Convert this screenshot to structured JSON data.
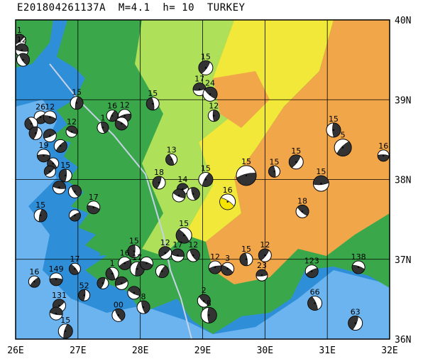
{
  "title": "E201804261137A  M=4.1  h= 10  TURKEY",
  "axes": {
    "x_ticks": [
      "26E",
      "27E",
      "28E",
      "29E",
      "30E",
      "31E",
      "32E"
    ],
    "y_ticks": [
      "40N",
      "39N",
      "38N",
      "37N",
      "36N"
    ],
    "lon_range": [
      26,
      32
    ],
    "lat_range": [
      36,
      40
    ]
  },
  "colors": {
    "sea_deep": "#2e8fd8",
    "sea_mid": "#6cb4ef",
    "sea_shallow": "#b9dcf7",
    "lowland": "#3aa84a",
    "hill": "#aee05a",
    "upland": "#f2e83a",
    "highland": "#f2a64a",
    "fault_line": "#c6d3e6",
    "highlight": "#f5e400"
  },
  "events": [
    {
      "lon": 26.06,
      "lat": 39.74,
      "label": "1",
      "r": 9
    },
    {
      "lon": 26.1,
      "lat": 39.62,
      "label": "12",
      "r": 9
    },
    {
      "lon": 26.12,
      "lat": 39.5,
      "label": "",
      "r": 9
    },
    {
      "lon": 26.98,
      "lat": 38.96,
      "label": "15",
      "r": 9
    },
    {
      "lon": 26.4,
      "lat": 38.78,
      "label": "26",
      "r": 9
    },
    {
      "lon": 26.55,
      "lat": 38.78,
      "label": "12",
      "r": 9
    },
    {
      "lon": 26.25,
      "lat": 38.7,
      "label": "",
      "r": 9
    },
    {
      "lon": 26.32,
      "lat": 38.58,
      "label": "",
      "r": 9
    },
    {
      "lon": 26.55,
      "lat": 38.55,
      "label": "",
      "r": 9
    },
    {
      "lon": 26.9,
      "lat": 38.6,
      "label": "12",
      "r": 8
    },
    {
      "lon": 27.4,
      "lat": 38.65,
      "label": "1",
      "r": 8
    },
    {
      "lon": 27.55,
      "lat": 38.8,
      "label": "16",
      "r": 8
    },
    {
      "lon": 27.75,
      "lat": 38.8,
      "label": "12",
      "r": 9
    },
    {
      "lon": 27.7,
      "lat": 38.7,
      "label": "",
      "r": 9
    },
    {
      "lon": 28.2,
      "lat": 38.95,
      "label": "15",
      "r": 9
    },
    {
      "lon": 29.05,
      "lat": 39.4,
      "label": "15",
      "r": 10
    },
    {
      "lon": 28.95,
      "lat": 39.13,
      "label": "17",
      "r": 9
    },
    {
      "lon": 29.12,
      "lat": 39.07,
      "label": "24",
      "r": 10
    },
    {
      "lon": 29.18,
      "lat": 38.8,
      "label": "12",
      "r": 8
    },
    {
      "lon": 26.72,
      "lat": 38.42,
      "label": "",
      "r": 9
    },
    {
      "lon": 26.45,
      "lat": 38.3,
      "label": "19",
      "r": 9
    },
    {
      "lon": 26.6,
      "lat": 38.2,
      "label": "",
      "r": 8
    },
    {
      "lon": 26.8,
      "lat": 38.05,
      "label": "15",
      "r": 9
    },
    {
      "lon": 26.55,
      "lat": 38.1,
      "label": "",
      "r": 8
    },
    {
      "lon": 26.7,
      "lat": 37.9,
      "label": "",
      "r": 9
    },
    {
      "lon": 26.95,
      "lat": 37.85,
      "label": "",
      "r": 9
    },
    {
      "lon": 26.4,
      "lat": 37.55,
      "label": "15",
      "r": 9
    },
    {
      "lon": 26.95,
      "lat": 37.55,
      "label": "",
      "r": 8
    },
    {
      "lon": 27.25,
      "lat": 37.65,
      "label": "17",
      "r": 9
    },
    {
      "lon": 28.5,
      "lat": 38.25,
      "label": "13",
      "r": 8
    },
    {
      "lon": 28.3,
      "lat": 37.96,
      "label": "18",
      "r": 9
    },
    {
      "lon": 28.68,
      "lat": 37.88,
      "label": "14",
      "r": 8
    },
    {
      "lon": 28.62,
      "lat": 37.8,
      "label": "",
      "r": 9
    },
    {
      "lon": 28.85,
      "lat": 37.82,
      "label": "",
      "r": 9
    },
    {
      "lon": 29.05,
      "lat": 38.0,
      "label": "15",
      "r": 10
    },
    {
      "lon": 29.7,
      "lat": 38.05,
      "label": "15",
      "r": 14
    },
    {
      "lon": 29.4,
      "lat": 37.72,
      "label": "16",
      "r": 11
    },
    {
      "lon": 30.15,
      "lat": 38.1,
      "label": "15",
      "r": 8
    },
    {
      "lon": 30.5,
      "lat": 38.22,
      "label": "15",
      "r": 10
    },
    {
      "lon": 30.9,
      "lat": 37.95,
      "label": "15",
      "r": 11
    },
    {
      "lon": 30.6,
      "lat": 37.6,
      "label": "18",
      "r": 9
    },
    {
      "lon": 31.1,
      "lat": 38.62,
      "label": "15",
      "r": 10
    },
    {
      "lon": 31.25,
      "lat": 38.4,
      "label": "5",
      "r": 12
    },
    {
      "lon": 31.9,
      "lat": 38.3,
      "label": "16",
      "r": 8
    },
    {
      "lon": 28.7,
      "lat": 37.3,
      "label": "15",
      "r": 11
    },
    {
      "lon": 27.9,
      "lat": 37.1,
      "label": "15",
      "r": 9
    },
    {
      "lon": 28.4,
      "lat": 37.08,
      "label": "12",
      "r": 9
    },
    {
      "lon": 28.6,
      "lat": 37.05,
      "label": "17",
      "r": 9
    },
    {
      "lon": 28.85,
      "lat": 37.05,
      "label": "12",
      "r": 9
    },
    {
      "lon": 27.95,
      "lat": 36.88,
      "label": "17",
      "r": 10
    },
    {
      "lon": 27.75,
      "lat": 36.95,
      "label": "16",
      "r": 9
    },
    {
      "lon": 28.1,
      "lat": 36.95,
      "label": "",
      "r": 9
    },
    {
      "lon": 27.55,
      "lat": 36.82,
      "label": "1",
      "r": 9
    },
    {
      "lon": 27.4,
      "lat": 36.7,
      "label": "",
      "r": 8
    },
    {
      "lon": 27.7,
      "lat": 36.7,
      "label": "",
      "r": 9
    },
    {
      "lon": 27.9,
      "lat": 36.58,
      "label": "",
      "r": 9
    },
    {
      "lon": 28.05,
      "lat": 36.4,
      "label": "8",
      "r": 9
    },
    {
      "lon": 28.35,
      "lat": 36.85,
      "label": "",
      "r": 9
    },
    {
      "lon": 29.2,
      "lat": 36.9,
      "label": "12",
      "r": 9
    },
    {
      "lon": 29.4,
      "lat": 36.88,
      "label": "3",
      "r": 9
    },
    {
      "lon": 29.7,
      "lat": 37.0,
      "label": "15",
      "r": 9
    },
    {
      "lon": 30.0,
      "lat": 37.05,
      "label": "12",
      "r": 9
    },
    {
      "lon": 29.95,
      "lat": 36.8,
      "label": "23",
      "r": 8
    },
    {
      "lon": 29.02,
      "lat": 36.48,
      "label": "2",
      "r": 9
    },
    {
      "lon": 29.1,
      "lat": 36.3,
      "label": "8",
      "r": 11
    },
    {
      "lon": 26.3,
      "lat": 36.72,
      "label": "16",
      "r": 8
    },
    {
      "lon": 26.65,
      "lat": 36.75,
      "label": "149",
      "r": 9
    },
    {
      "lon": 26.95,
      "lat": 36.88,
      "label": "17",
      "r": 8
    },
    {
      "lon": 27.1,
      "lat": 36.55,
      "label": "52",
      "r": 8
    },
    {
      "lon": 26.7,
      "lat": 36.42,
      "label": "131",
      "r": 9
    },
    {
      "lon": 26.65,
      "lat": 36.32,
      "label": "",
      "r": 9
    },
    {
      "lon": 27.65,
      "lat": 36.3,
      "label": "00",
      "r": 9
    },
    {
      "lon": 26.8,
      "lat": 36.1,
      "label": "15",
      "r": 10
    },
    {
      "lon": 30.75,
      "lat": 36.85,
      "label": "123",
      "r": 9
    },
    {
      "lon": 31.5,
      "lat": 36.9,
      "label": "138",
      "r": 9
    },
    {
      "lon": 30.8,
      "lat": 36.45,
      "label": "66",
      "r": 10
    },
    {
      "lon": 31.45,
      "lat": 36.2,
      "label": "63",
      "r": 10
    }
  ],
  "highlighted_event": {
    "lon": 29.4,
    "lat": 37.72,
    "r": 11
  }
}
